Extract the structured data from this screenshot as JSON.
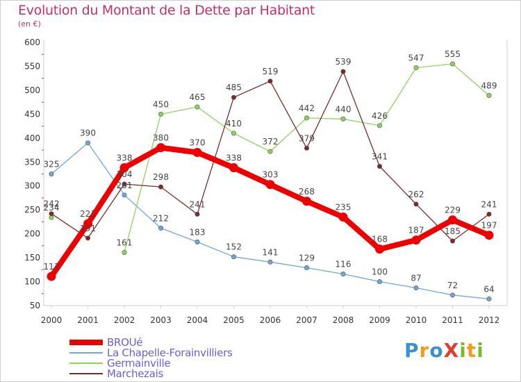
{
  "title": "Evolution du Montant de la Dette par Habitant",
  "unit_label": "(en €)",
  "logo": {
    "text": "ProXiti",
    "letters": [
      {
        "ch": "P",
        "color": "#3a8fd6"
      },
      {
        "ch": "r",
        "color": "#f19a1e"
      },
      {
        "ch": "o",
        "color": "#3a8fd6"
      },
      {
        "ch": "X",
        "color": "#e03c31"
      },
      {
        "ch": "i",
        "color": "#7ab82c"
      },
      {
        "ch": "t",
        "color": "#f19a1e"
      },
      {
        "ch": "i",
        "color": "#7ab82c"
      }
    ]
  },
  "chart_data": {
    "type": "line",
    "x": [
      "2000",
      "2001",
      "2002",
      "2003",
      "2004",
      "2005",
      "2006",
      "2007",
      "2008",
      "2009",
      "2010",
      "2011",
      "2012"
    ],
    "ylim": [
      50,
      600
    ],
    "yticks": [
      "50",
      "100",
      "150",
      "200",
      "250",
      "300",
      "350",
      "400",
      "450",
      "500",
      "550",
      "600"
    ],
    "grid": false,
    "legend_position": "bottom-left",
    "series": [
      {
        "name": "BROUé",
        "color": "#ee0000",
        "width": 8,
        "values": [
          111,
          221,
          338,
          380,
          370,
          338,
          303,
          268,
          235,
          168,
          187,
          229,
          197
        ],
        "labels": [
          "111",
          "221",
          "338",
          "380",
          "370",
          "338",
          "303",
          "268",
          "235",
          "168",
          "187",
          "229",
          "197"
        ]
      },
      {
        "name": "La Chapelle-Forainvilliers",
        "color": "#6ea6d6",
        "width": 1.3,
        "values": [
          325,
          390,
          281,
          212,
          183,
          152,
          141,
          129,
          116,
          100,
          87,
          72,
          64
        ],
        "labels": [
          "325",
          "390",
          "281",
          "212",
          "183",
          "152",
          "141",
          "129",
          "116",
          "100",
          "87",
          "72",
          "64"
        ]
      },
      {
        "name": "Germainville",
        "color": "#90d060",
        "width": 1.3,
        "values": [
          234,
          null,
          161,
          450,
          465,
          410,
          372,
          442,
          440,
          426,
          547,
          555,
          489
        ],
        "labels": [
          "234",
          "",
          "161",
          "450",
          "465",
          "410",
          "372",
          "442",
          "440",
          "426",
          "547",
          "555",
          "489"
        ]
      },
      {
        "name": "Marchezais",
        "color": "#7a2a2a",
        "width": 1.3,
        "values": [
          242,
          191,
          304,
          298,
          241,
          485,
          519,
          379,
          539,
          341,
          262,
          185,
          241
        ],
        "labels": [
          "242",
          "191",
          "304",
          "298",
          "241",
          "485",
          "519",
          "379",
          "539",
          "341",
          "262",
          "185",
          "241"
        ]
      }
    ]
  }
}
